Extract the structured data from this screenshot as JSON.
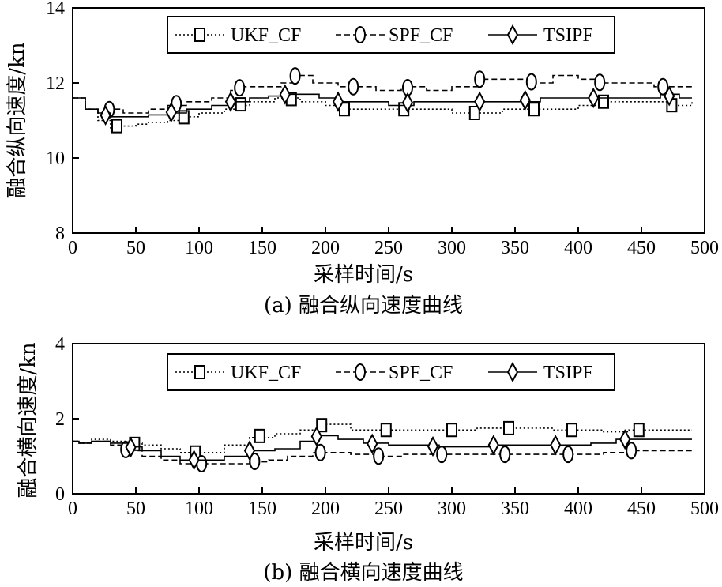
{
  "chart_data": [
    {
      "type": "line",
      "caption": "(a) 融合纵向速度曲线",
      "xlabel": "采样时间/s",
      "ylabel": "融合纵向速度/kn",
      "xlim": [
        0,
        500
      ],
      "ylim": [
        8,
        14
      ],
      "xticks": [
        "0",
        "50",
        "100",
        "150",
        "200",
        "250",
        "300",
        "350",
        "400",
        "450",
        "500"
      ],
      "yticks": [
        "8",
        "10",
        "12",
        "14"
      ],
      "legend": "top",
      "series": [
        {
          "name": "UKF_CF",
          "style": "dotted",
          "marker": "square",
          "x": [
            0,
            10,
            20,
            30,
            35,
            50,
            60,
            75,
            90,
            100,
            120,
            130,
            140,
            160,
            170,
            180,
            200,
            215,
            230,
            250,
            265,
            280,
            300,
            320,
            340,
            360,
            380,
            400,
            420,
            440,
            460,
            475,
            490
          ],
          "y": [
            11.6,
            11.3,
            11.0,
            10.8,
            10.85,
            10.9,
            10.95,
            11.0,
            11.1,
            11.2,
            11.3,
            11.4,
            11.5,
            11.6,
            11.6,
            11.5,
            11.4,
            11.3,
            11.3,
            11.3,
            11.3,
            11.3,
            11.2,
            11.2,
            11.3,
            11.3,
            11.3,
            11.4,
            11.5,
            11.5,
            11.5,
            11.4,
            11.5
          ],
          "marker_x": [
            35,
            88,
            133,
            173,
            215,
            262,
            318,
            365,
            420,
            474
          ]
        },
        {
          "name": "SPF_CF",
          "style": "dashed",
          "marker": "circle",
          "x": [
            0,
            10,
            20,
            30,
            40,
            50,
            60,
            75,
            90,
            110,
            125,
            135,
            150,
            165,
            175,
            190,
            210,
            225,
            240,
            260,
            280,
            300,
            320,
            340,
            360,
            380,
            400,
            420,
            440,
            460,
            475,
            490
          ],
          "y": [
            11.6,
            11.3,
            11.2,
            11.3,
            11.2,
            11.2,
            11.3,
            11.4,
            11.5,
            11.6,
            11.8,
            11.9,
            11.9,
            12.0,
            12.2,
            12.0,
            11.9,
            11.9,
            11.8,
            11.9,
            11.8,
            11.9,
            12.1,
            12.1,
            12.0,
            12.2,
            12.1,
            12.0,
            12.0,
            11.9,
            11.9,
            11.9
          ],
          "marker_x": [
            29,
            82,
            132,
            176,
            222,
            265,
            322,
            363,
            417,
            467
          ]
        },
        {
          "name": "TSIPF",
          "style": "solid",
          "marker": "diamond",
          "x": [
            0,
            10,
            20,
            30,
            40,
            50,
            60,
            75,
            90,
            110,
            125,
            140,
            155,
            170,
            180,
            195,
            210,
            230,
            250,
            270,
            290,
            310,
            330,
            350,
            370,
            390,
            410,
            430,
            450,
            465,
            480,
            490
          ],
          "y": [
            11.6,
            11.3,
            11.2,
            11.1,
            11.1,
            11.1,
            11.15,
            11.2,
            11.3,
            11.4,
            11.5,
            11.6,
            11.65,
            11.7,
            11.7,
            11.6,
            11.5,
            11.5,
            11.4,
            11.5,
            11.5,
            11.5,
            11.5,
            11.5,
            11.6,
            11.6,
            11.6,
            11.6,
            11.6,
            11.7,
            11.6,
            11.6
          ],
          "marker_x": [
            26,
            78,
            125,
            168,
            210,
            265,
            322,
            358,
            412,
            472
          ]
        }
      ]
    },
    {
      "type": "line",
      "caption": "(b) 融合横向速度曲线",
      "xlabel": "采样时间/s",
      "ylabel": "融合横向速度/kn",
      "xlim": [
        0,
        500
      ],
      "ylim": [
        0,
        4
      ],
      "xticks": [
        "0",
        "50",
        "100",
        "150",
        "200",
        "250",
        "300",
        "350",
        "400",
        "450",
        "500"
      ],
      "yticks": [
        "0",
        "2",
        "4"
      ],
      "legend": "top",
      "series": [
        {
          "name": "UKF_CF",
          "style": "dotted",
          "marker": "square",
          "x": [
            0,
            5,
            15,
            30,
            45,
            55,
            70,
            85,
            100,
            120,
            140,
            160,
            180,
            200,
            220,
            240,
            260,
            280,
            300,
            320,
            340,
            360,
            380,
            400,
            420,
            440,
            460,
            475,
            490
          ],
          "y": [
            1.4,
            1.35,
            1.45,
            1.4,
            1.35,
            1.3,
            1.2,
            1.1,
            1.1,
            1.3,
            1.5,
            1.6,
            1.7,
            1.85,
            1.7,
            1.7,
            1.7,
            1.7,
            1.7,
            1.75,
            1.75,
            1.75,
            1.7,
            1.7,
            1.65,
            1.7,
            1.7,
            1.7,
            1.7
          ],
          "marker_x": [
            49,
            97,
            148,
            197,
            248,
            300,
            345,
            395,
            448
          ]
        },
        {
          "name": "SPF_CF",
          "style": "dashed",
          "marker": "circle",
          "x": [
            0,
            5,
            15,
            30,
            45,
            55,
            70,
            85,
            100,
            120,
            140,
            155,
            170,
            190,
            205,
            220,
            240,
            260,
            280,
            300,
            320,
            340,
            360,
            380,
            400,
            420,
            440,
            460,
            475,
            490
          ],
          "y": [
            1.4,
            1.35,
            1.4,
            1.3,
            1.15,
            1.0,
            0.9,
            0.8,
            0.8,
            0.8,
            0.85,
            0.9,
            1.0,
            1.1,
            1.1,
            1.05,
            1.0,
            1.05,
            1.05,
            1.05,
            1.05,
            1.05,
            1.05,
            1.05,
            1.05,
            1.1,
            1.15,
            1.15,
            1.15,
            1.15
          ],
          "marker_x": [
            42,
            102,
            144,
            196,
            242,
            292,
            342,
            392,
            442
          ]
        },
        {
          "name": "TSIPF",
          "style": "solid",
          "marker": "diamond",
          "x": [
            0,
            5,
            15,
            30,
            45,
            55,
            70,
            85,
            100,
            120,
            140,
            160,
            180,
            195,
            210,
            230,
            250,
            270,
            290,
            310,
            330,
            350,
            370,
            390,
            410,
            430,
            450,
            470,
            490
          ],
          "y": [
            1.4,
            1.35,
            1.4,
            1.35,
            1.25,
            1.15,
            1.0,
            0.9,
            0.9,
            1.0,
            1.15,
            1.2,
            1.4,
            1.55,
            1.45,
            1.35,
            1.3,
            1.3,
            1.25,
            1.25,
            1.3,
            1.3,
            1.3,
            1.3,
            1.35,
            1.45,
            1.45,
            1.45,
            1.45
          ],
          "marker_x": [
            46,
            96,
            140,
            193,
            237,
            285,
            333,
            382,
            437
          ]
        }
      ]
    }
  ]
}
